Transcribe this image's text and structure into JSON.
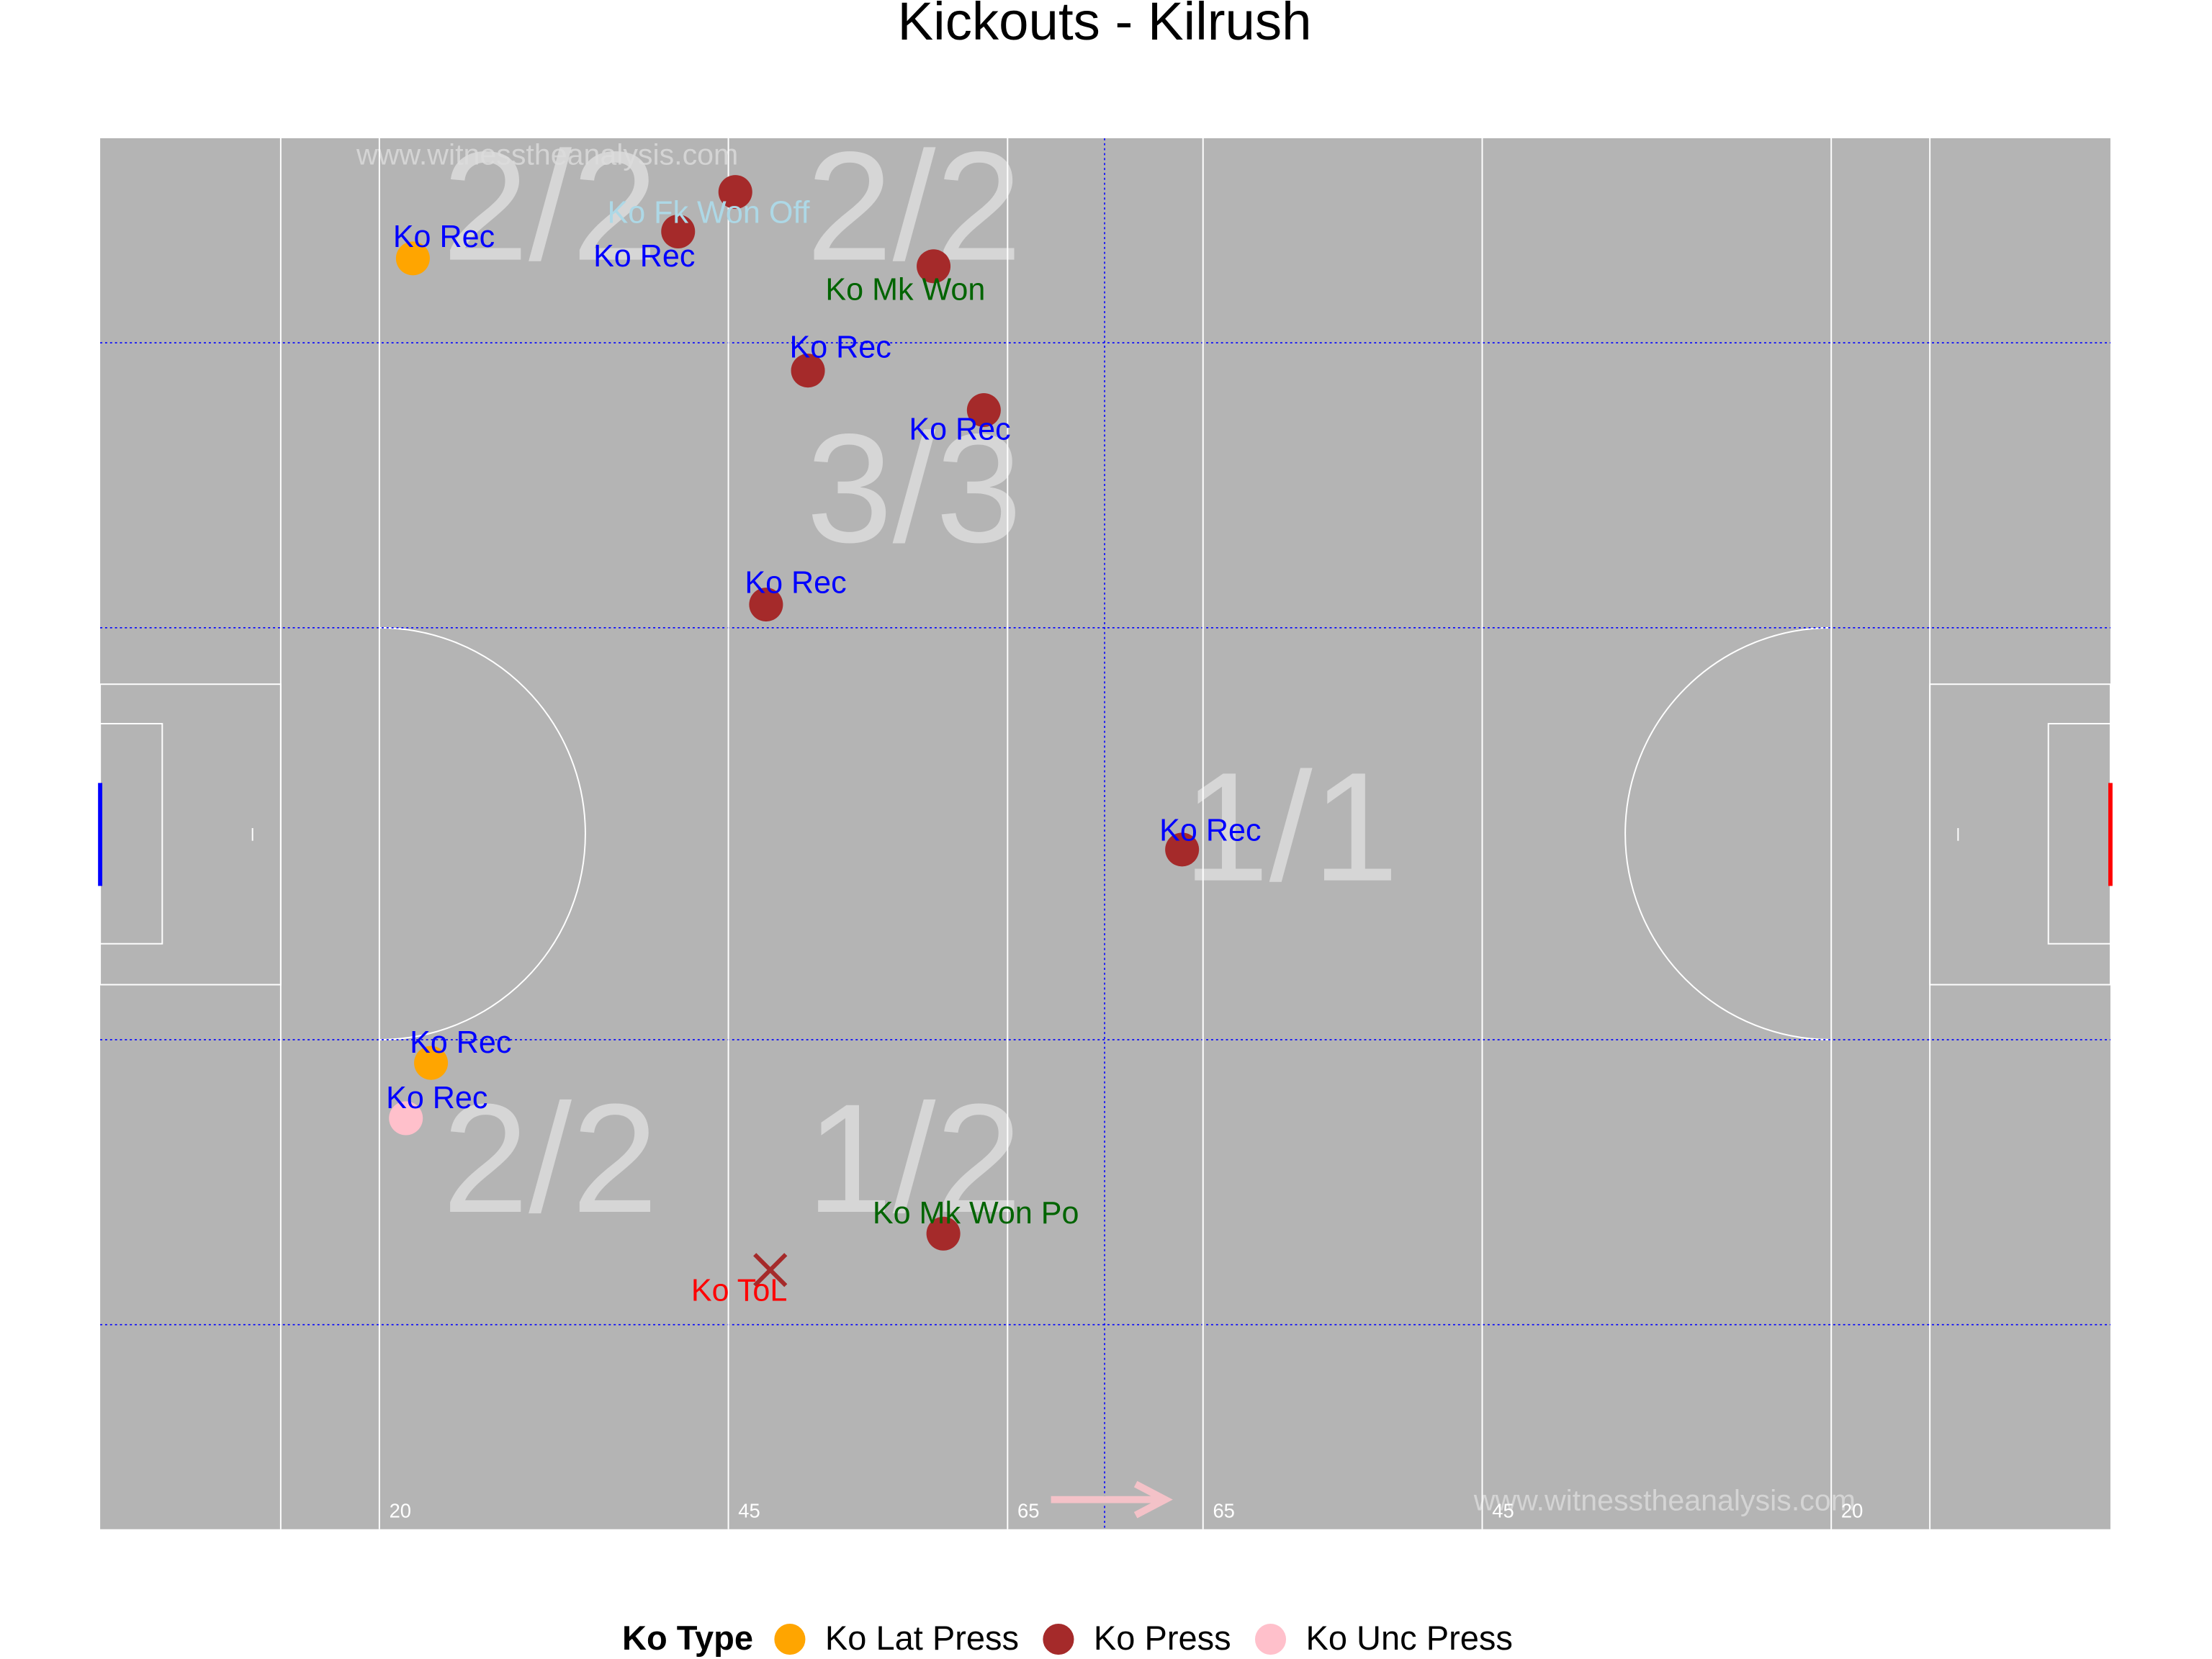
{
  "chart_data": {
    "type": "pitch-scatter",
    "title": "Kickouts - Kilrush",
    "watermark": "www.witnesstheanalysis.com",
    "xlim": [
      0,
      144
    ],
    "ylim": [
      0,
      88
    ],
    "xticks": [
      20,
      45,
      65,
      {
        "value": 79,
        "label": "65"
      },
      {
        "value": 99,
        "label": "45"
      },
      {
        "value": 124,
        "label": "20"
      }
    ],
    "legend_title": "Ko Type",
    "annotations": [
      "2/2",
      "2/2",
      "3/3",
      "1/1",
      "2/2",
      "1/2"
    ],
    "series": [
      {
        "name": "Ko Lat Press",
        "color": "orange",
        "x": [
          22.4,
          23.7
        ],
        "y": [
          80.4,
          29.5
        ],
        "labels": [
          "Ko Rec",
          "Ko Rec"
        ],
        "label_colors": [
          "blue",
          "blue"
        ],
        "shapes": [
          "circle",
          "circle"
        ]
      },
      {
        "name": "Ko Press",
        "color": "#a52a2a",
        "x": [
          41.4,
          45.5,
          59.7,
          50.7,
          63.3,
          47.7,
          77.5,
          60.4,
          48.0
        ],
        "y": [
          82.1,
          84.6,
          79.9,
          73.3,
          70.8,
          58.5,
          43.0,
          18.7,
          16.4
        ],
        "labels": [
          "Ko Rec",
          "Ko Fk Won Off",
          "Ko Mk Won",
          "Ko Rec",
          "Ko Rec",
          "Ko Rec",
          "Ko Rec",
          "Ko Mk Won Po",
          "Ko ToL"
        ],
        "label_colors": [
          "blue",
          "lightblue",
          "darkgreen",
          "blue",
          "blue",
          "blue",
          "blue",
          "darkgreen",
          "red"
        ],
        "shapes": [
          "circle",
          "circle",
          "circle",
          "circle",
          "circle",
          "circle",
          "circle",
          "circle",
          "x"
        ]
      },
      {
        "name": "Ko Unc Press",
        "color": "pink",
        "x": [
          21.9
        ],
        "y": [
          26.0
        ],
        "labels": [
          "Ko Rec"
        ],
        "label_colors": [
          "blue"
        ],
        "shapes": [
          "circle"
        ]
      }
    ]
  }
}
